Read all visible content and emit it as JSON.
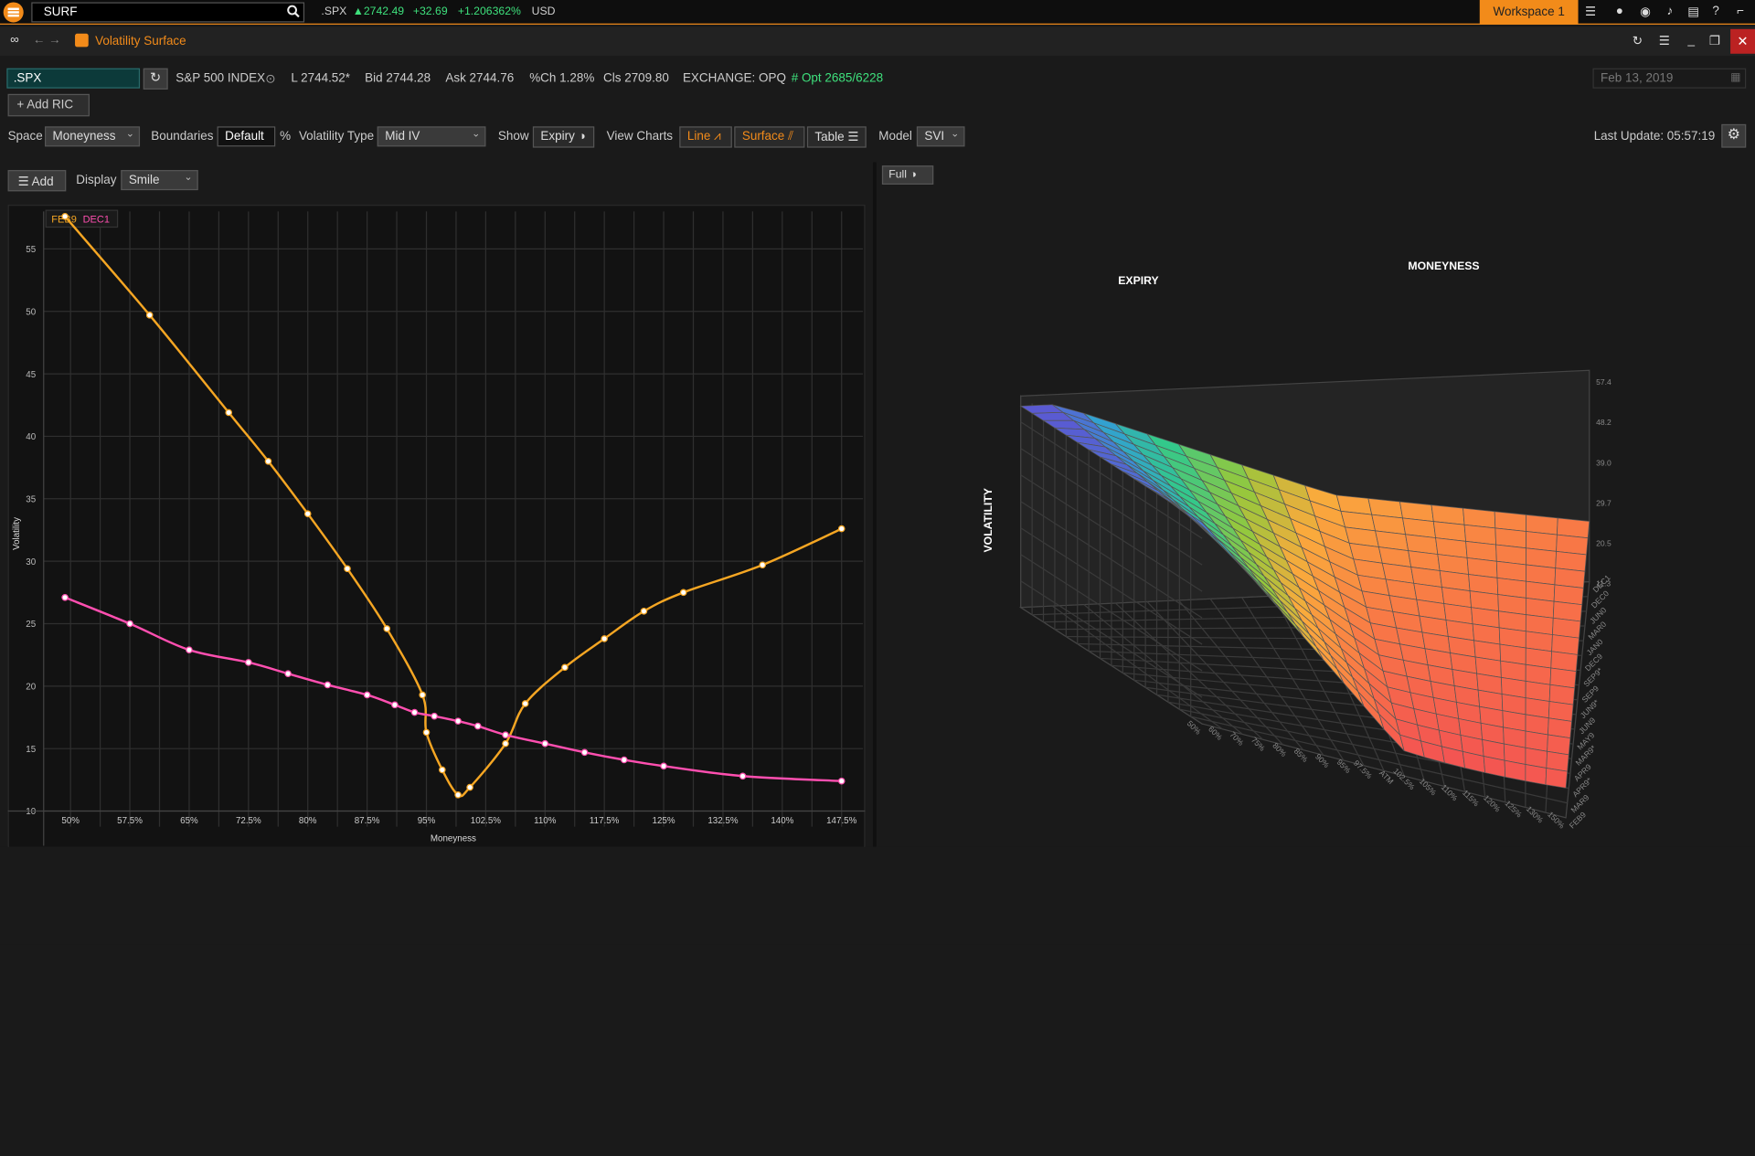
{
  "topbar": {
    "search_value": "SURF",
    "ticker": ".SPX",
    "price": "▲2742.49",
    "change": "+32.69",
    "change_pct": "+1.206362%",
    "currency": "USD",
    "workspace": "Workspace 1"
  },
  "window": {
    "title": "Volatility Surface"
  },
  "quote": {
    "ric": ".SPX",
    "name": "S&P 500 INDEX",
    "last": "L  2744.52*",
    "bid": "Bid  2744.28",
    "ask": "Ask  2744.76",
    "pct_change": "%Ch  1.28%",
    "close": "Cls  2709.80",
    "exchange": "EXCHANGE:  OPQ",
    "opt": "# Opt  2685/6228",
    "date": "Feb 13, 2019",
    "add_ric": "Add RIC"
  },
  "controls": {
    "space_label": "Space",
    "space_value": "Moneyness",
    "boundaries_label": "Boundaries",
    "boundaries_value": "Default",
    "pct": "%",
    "voltype_label": "Volatility Type",
    "voltype_value": "Mid IV",
    "show_label": "Show",
    "show_value": "Expiry",
    "viewcharts_label": "View Charts",
    "line_label": "Line",
    "surface_label": "Surface",
    "table_label": "Table",
    "model_label": "Model",
    "model_value": "SVI",
    "last_update": "Last Update:  05:57:19"
  },
  "left_panel": {
    "add_label": "Add",
    "display_label": "Display",
    "display_value": "Smile"
  },
  "right_panel": {
    "full_label": "Full",
    "expiry_label": "EXPIRY",
    "moneyness_label": "MONEYNESS",
    "volatility_label": "VOLATILITY",
    "vol_ticks": [
      "57.4",
      "48.2",
      "39.0",
      "29.7",
      "20.5",
      "11.3"
    ],
    "expiry_ticks": [
      "DEC1",
      "DEC0",
      "JUN0",
      "MAR0",
      "JAN0",
      "DEC9",
      "SEP9*",
      "SEP9",
      "JUN9*",
      "JUN9",
      "MAY9",
      "MAR9*",
      "APR9",
      "APR9*",
      "MAR9",
      "FEB9"
    ],
    "money_ticks": [
      "50%",
      "60%",
      "70%",
      "75%",
      "80%",
      "85%",
      "90%",
      "95%",
      "97.5%",
      "ATM",
      "102.5%",
      "105%",
      "110%",
      "115%",
      "120%",
      "125%",
      "130%",
      "150%"
    ]
  },
  "colors": {
    "accent": "#f28b1a",
    "feb9": "#f5a623",
    "dec1": "#ff4fb0",
    "positive": "#3ee07c"
  },
  "chart_data": {
    "type": "line",
    "title": "",
    "xlabel": "Moneyness",
    "ylabel": "Volatility",
    "ylim": [
      10,
      58
    ],
    "x_tick_labels": [
      "50%",
      "57.5%",
      "65%",
      "72.5%",
      "80%",
      "87.5%",
      "95%",
      "102.5%",
      "110%",
      "117.5%",
      "125%",
      "132.5%",
      "140%",
      "147.5%"
    ],
    "y_ticks": [
      10,
      15,
      20,
      25,
      30,
      35,
      40,
      45,
      50,
      55
    ],
    "grid": true,
    "legend": "top-left",
    "series": [
      {
        "name": "FEB9",
        "color": "#f5a623",
        "x": [
          49.3,
          60,
          70,
          75,
          80,
          85,
          90,
          94.5,
          95,
          97,
          99,
          100.5,
          105,
          107.5,
          112.5,
          117.5,
          122.5,
          127.5,
          137.5,
          147.5
        ],
        "y": [
          57.6,
          49.7,
          41.9,
          38.0,
          33.8,
          29.4,
          24.6,
          19.3,
          16.3,
          13.3,
          11.3,
          11.9,
          15.4,
          18.6,
          21.5,
          23.8,
          26.0,
          27.5,
          29.7,
          32.6
        ]
      },
      {
        "name": "DEC1",
        "color": "#ff4fb0",
        "x": [
          49.3,
          57.5,
          65,
          72.5,
          77.5,
          82.5,
          87.5,
          91,
          93.5,
          96,
          99,
          101.5,
          105,
          110,
          115,
          120,
          125,
          135,
          147.5
        ],
        "y": [
          27.1,
          25.0,
          22.9,
          21.9,
          21.0,
          20.1,
          19.3,
          18.5,
          17.9,
          17.6,
          17.2,
          16.8,
          16.1,
          15.4,
          14.7,
          14.1,
          13.6,
          12.8,
          12.4
        ]
      }
    ]
  }
}
